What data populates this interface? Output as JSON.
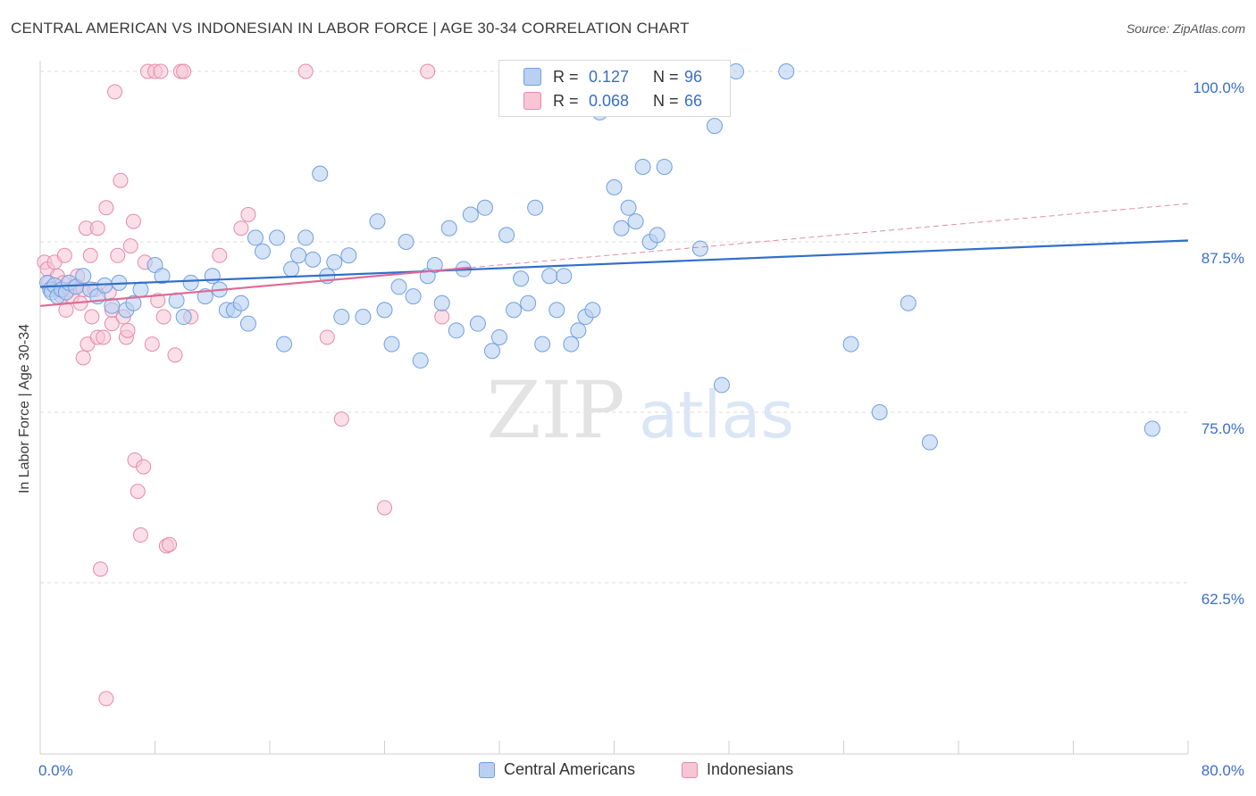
{
  "title": "CENTRAL AMERICAN VS INDONESIAN IN LABOR FORCE | AGE 30-34 CORRELATION CHART",
  "source": "Source: ZipAtlas.com",
  "watermark": {
    "zip": "ZIP",
    "atlas": "atlas"
  },
  "legend_top": [
    {
      "r_label": "R =",
      "r_value": "0.127",
      "n_label": "N =",
      "n_value": "96",
      "color": "#6fa0e0",
      "fill": "#b9d0f2"
    },
    {
      "r_label": "R =",
      "r_value": "0.068",
      "n_label": "N =",
      "n_value": "66",
      "color": "#e58aa8",
      "fill": "#f8c5d5"
    }
  ],
  "legend_bottom": [
    {
      "label": "Central Americans",
      "color": "#6fa0e0",
      "fill": "#b9d0f2"
    },
    {
      "label": "Indonesians",
      "color": "#e58aa8",
      "fill": "#f8c5d5"
    }
  ],
  "chart_data": {
    "type": "scatter",
    "title": "CENTRAL AMERICAN VS INDONESIAN IN LABOR FORCE | AGE 30-34 CORRELATION CHART",
    "xlabel": "",
    "ylabel": "In Labor Force | Age 30-34",
    "xlim": [
      0,
      80
    ],
    "ylim": [
      50,
      100
    ],
    "x_tick_labels": [
      "0.0%",
      "80.0%"
    ],
    "y_ticks": [
      62.5,
      75.0,
      87.5,
      100.0
    ],
    "y_tick_labels": [
      "62.5%",
      "75.0%",
      "87.5%",
      "100.0%"
    ],
    "grid": true,
    "legend_position": "top-center",
    "colors": {
      "blue_stroke": "#6fa0e0",
      "blue_fill": "#b9d0f2",
      "blue_line": "#2f6fca",
      "pink_stroke": "#e58aa8",
      "pink_fill": "#f8c5d5",
      "pink_line": "#e06a95",
      "tick_text": "#3a6fc4",
      "grid": "#dddddd"
    },
    "series": [
      {
        "name": "Central Americans",
        "trend": {
          "x0": 0,
          "y0": 84.2,
          "x1": 80,
          "y1": 87.6
        },
        "points": [
          [
            0.5,
            84.5
          ],
          [
            0.7,
            84.0
          ],
          [
            0.8,
            83.8
          ],
          [
            1.0,
            84.3
          ],
          [
            1.2,
            83.5
          ],
          [
            1.5,
            84.0
          ],
          [
            1.8,
            83.8
          ],
          [
            2.0,
            84.5
          ],
          [
            2.5,
            84.2
          ],
          [
            3.0,
            85.0
          ],
          [
            3.5,
            84.0
          ],
          [
            4.0,
            83.5
          ],
          [
            4.5,
            84.3
          ],
          [
            5.0,
            82.8
          ],
          [
            5.5,
            84.5
          ],
          [
            6.0,
            82.5
          ],
          [
            6.5,
            83.0
          ],
          [
            7.0,
            84.0
          ],
          [
            8.0,
            85.8
          ],
          [
            8.5,
            85.0
          ],
          [
            9.5,
            83.2
          ],
          [
            10.0,
            82.0
          ],
          [
            10.5,
            84.5
          ],
          [
            11.5,
            83.5
          ],
          [
            12.0,
            85.0
          ],
          [
            12.5,
            84.0
          ],
          [
            13.0,
            82.5
          ],
          [
            13.5,
            82.5
          ],
          [
            14.0,
            83.0
          ],
          [
            14.5,
            81.5
          ],
          [
            15.0,
            87.8
          ],
          [
            15.5,
            86.8
          ],
          [
            16.5,
            87.8
          ],
          [
            17.0,
            80.0
          ],
          [
            17.5,
            85.5
          ],
          [
            18.0,
            86.5
          ],
          [
            18.5,
            87.8
          ],
          [
            19.0,
            86.2
          ],
          [
            19.5,
            92.5
          ],
          [
            20.0,
            85.0
          ],
          [
            20.5,
            86.0
          ],
          [
            21.0,
            82.0
          ],
          [
            21.5,
            86.5
          ],
          [
            22.5,
            82.0
          ],
          [
            23.5,
            89.0
          ],
          [
            24.0,
            82.5
          ],
          [
            24.5,
            80.0
          ],
          [
            25.0,
            84.2
          ],
          [
            25.5,
            87.5
          ],
          [
            26.0,
            83.5
          ],
          [
            26.5,
            78.8
          ],
          [
            27.0,
            85.0
          ],
          [
            27.5,
            85.8
          ],
          [
            28.0,
            83.0
          ],
          [
            28.5,
            88.5
          ],
          [
            29.0,
            81.0
          ],
          [
            29.5,
            85.5
          ],
          [
            30.0,
            89.5
          ],
          [
            30.5,
            81.5
          ],
          [
            31.0,
            90.0
          ],
          [
            31.5,
            79.5
          ],
          [
            32.0,
            80.5
          ],
          [
            32.5,
            88.0
          ],
          [
            33.0,
            82.5
          ],
          [
            33.5,
            84.8
          ],
          [
            34.0,
            83.0
          ],
          [
            34.5,
            90.0
          ],
          [
            35.0,
            80.0
          ],
          [
            35.5,
            85.0
          ],
          [
            36.0,
            82.5
          ],
          [
            36.5,
            85.0
          ],
          [
            37.0,
            80.0
          ],
          [
            37.5,
            81.0
          ],
          [
            38.0,
            82.0
          ],
          [
            38.5,
            82.5
          ],
          [
            39.0,
            97.0
          ],
          [
            39.5,
            100.0
          ],
          [
            40.0,
            91.5
          ],
          [
            40.5,
            88.5
          ],
          [
            41.0,
            90.0
          ],
          [
            41.5,
            89.0
          ],
          [
            42.0,
            93.0
          ],
          [
            42.5,
            87.5
          ],
          [
            43.0,
            88.0
          ],
          [
            43.5,
            93.0
          ],
          [
            45.5,
            100.0
          ],
          [
            46.0,
            87.0
          ],
          [
            47.0,
            96.0
          ],
          [
            47.5,
            77.0
          ],
          [
            48.5,
            100.0
          ],
          [
            52.0,
            100.0
          ],
          [
            56.5,
            80.0
          ],
          [
            58.5,
            75.0
          ],
          [
            60.5,
            83.0
          ],
          [
            62.0,
            72.8
          ],
          [
            77.5,
            73.8
          ]
        ]
      },
      {
        "name": "Indonesians",
        "trend": {
          "x0": 0,
          "y0": 82.8,
          "x1": 80,
          "y1": 90.3,
          "solid_until": 30
        },
        "points": [
          [
            0.3,
            86.0
          ],
          [
            0.5,
            85.5
          ],
          [
            0.6,
            84.5
          ],
          [
            0.8,
            84.0
          ],
          [
            1.0,
            86.0
          ],
          [
            1.2,
            85.0
          ],
          [
            1.3,
            84.0
          ],
          [
            1.5,
            83.5
          ],
          [
            1.6,
            84.5
          ],
          [
            1.7,
            86.5
          ],
          [
            1.8,
            82.5
          ],
          [
            2.0,
            84.0
          ],
          [
            2.2,
            83.5
          ],
          [
            2.4,
            84.2
          ],
          [
            2.6,
            85.0
          ],
          [
            2.8,
            83.0
          ],
          [
            3.0,
            84.0
          ],
          [
            3.0,
            79.0
          ],
          [
            3.2,
            88.5
          ],
          [
            3.3,
            80.0
          ],
          [
            3.5,
            86.5
          ],
          [
            3.6,
            82.0
          ],
          [
            3.8,
            84.0
          ],
          [
            4.0,
            80.5
          ],
          [
            4.0,
            88.5
          ],
          [
            4.2,
            63.5
          ],
          [
            4.4,
            80.5
          ],
          [
            4.6,
            90.0
          ],
          [
            4.8,
            83.8
          ],
          [
            5.0,
            81.5
          ],
          [
            5.0,
            82.5
          ],
          [
            5.2,
            98.5
          ],
          [
            5.4,
            86.5
          ],
          [
            5.6,
            92.0
          ],
          [
            5.8,
            82.0
          ],
          [
            6.0,
            80.5
          ],
          [
            6.1,
            81.0
          ],
          [
            6.3,
            87.2
          ],
          [
            6.5,
            89.0
          ],
          [
            6.6,
            71.5
          ],
          [
            6.8,
            69.2
          ],
          [
            7.0,
            66.0
          ],
          [
            7.2,
            71.0
          ],
          [
            7.3,
            86.0
          ],
          [
            7.5,
            100.0
          ],
          [
            7.8,
            80.0
          ],
          [
            8.0,
            100.0
          ],
          [
            8.2,
            83.2
          ],
          [
            8.4,
            100.0
          ],
          [
            8.6,
            82.0
          ],
          [
            8.8,
            65.2
          ],
          [
            9.0,
            65.3
          ],
          [
            9.4,
            79.2
          ],
          [
            9.8,
            100.0
          ],
          [
            10.0,
            100.0
          ],
          [
            10.5,
            82.0
          ],
          [
            12.5,
            86.5
          ],
          [
            14.0,
            88.5
          ],
          [
            14.5,
            89.5
          ],
          [
            18.5,
            100.0
          ],
          [
            20.0,
            80.5
          ],
          [
            21.0,
            74.5
          ],
          [
            24.0,
            68.0
          ],
          [
            27.0,
            100.0
          ],
          [
            28.0,
            82.0
          ],
          [
            4.6,
            54.0
          ]
        ]
      }
    ]
  }
}
